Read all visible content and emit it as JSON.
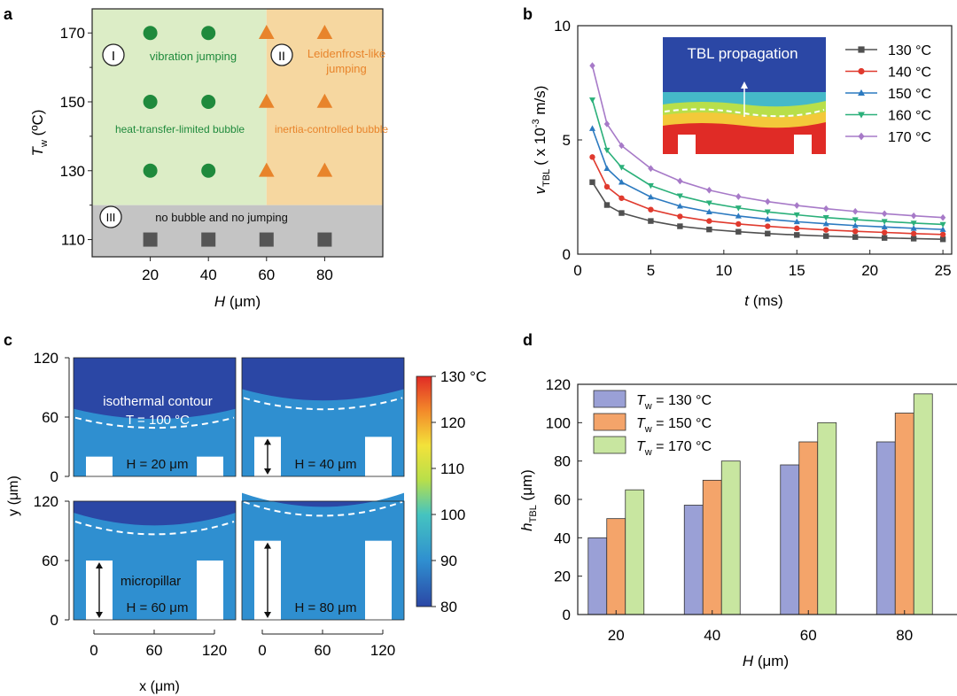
{
  "panels": {
    "a": "a",
    "b": "b",
    "c": "c",
    "d": "d"
  },
  "chart_data": [
    {
      "panel": "a",
      "type": "scatter",
      "xlabel": "H (μm)",
      "xlabel_italic": "H",
      "xlabel_unit": " (μm)",
      "ylabel_italic": "T",
      "ylabel_sub": "w",
      "ylabel_unit": " (ºC)",
      "x_ticks": [
        "20",
        "40",
        "60",
        "80"
      ],
      "y_ticks": [
        "110",
        "130",
        "150",
        "170"
      ],
      "xlim": [
        0,
        100
      ],
      "ylim": [
        105,
        177
      ],
      "regions": [
        {
          "name": "region-I",
          "numeral": "I",
          "color": "#dcedc6",
          "x_range": [
            0,
            60
          ],
          "y_range": [
            120,
            177
          ]
        },
        {
          "name": "region-II",
          "numeral": "II",
          "color": "#f6d7a0",
          "x_range": [
            60,
            100
          ],
          "y_range": [
            120,
            177
          ]
        },
        {
          "name": "region-III",
          "numeral": "III",
          "color": "#c4c4c4",
          "x_range": [
            0,
            100
          ],
          "y_range": [
            105,
            120
          ]
        }
      ],
      "labels": {
        "vibration": "vibration jumping",
        "leidenfrost_1": "Leidenfrost-like",
        "leidenfrost_2": "jumping",
        "heat_limited": "heat-transfer-limited bubble",
        "inertia": "inertia-controlled bubble",
        "no_bubble": "no bubble and no jumping"
      },
      "series": [
        {
          "name": "vibration jumping",
          "marker": "circle",
          "color": "#1f8a3c",
          "points": [
            [
              20,
              130
            ],
            [
              40,
              130
            ],
            [
              20,
              150
            ],
            [
              40,
              150
            ],
            [
              20,
              170
            ],
            [
              40,
              170
            ]
          ]
        },
        {
          "name": "Leidenfrost-like jumping",
          "marker": "triangle",
          "color": "#e8842b",
          "points": [
            [
              60,
              130
            ],
            [
              80,
              130
            ],
            [
              60,
              150
            ],
            [
              80,
              150
            ],
            [
              60,
              170
            ],
            [
              80,
              170
            ]
          ]
        },
        {
          "name": "no bubble and no jumping",
          "marker": "square",
          "color": "#555555",
          "points": [
            [
              20,
              110
            ],
            [
              40,
              110
            ],
            [
              60,
              110
            ],
            [
              80,
              110
            ]
          ]
        }
      ]
    },
    {
      "panel": "b",
      "type": "line",
      "xlabel_italic": "t",
      "xlabel_unit": " (ms)",
      "ylabel_italic": "v",
      "ylabel_sub": "TBL",
      "ylabel_unit": "( x 10",
      "ylabel_sup": "-3",
      "ylabel_unit2": " m/s)",
      "x_ticks": [
        "0",
        "5",
        "10",
        "15",
        "20",
        "25"
      ],
      "y_ticks": [
        "0",
        "5",
        "10"
      ],
      "xlim": [
        0,
        25.6
      ],
      "ylim": [
        0,
        10
      ],
      "inset_title": "TBL propagation",
      "x": [
        1,
        2,
        3,
        5,
        7,
        9,
        11,
        13,
        15,
        17,
        19,
        21,
        23,
        25
      ],
      "series": [
        {
          "name": "130 °C",
          "marker": "square",
          "color": "#505050",
          "values": [
            3.15,
            2.15,
            1.8,
            1.45,
            1.22,
            1.08,
            0.98,
            0.9,
            0.84,
            0.79,
            0.75,
            0.71,
            0.68,
            0.65
          ]
        },
        {
          "name": "140 °C",
          "marker": "circle",
          "color": "#e03a2e",
          "values": [
            4.25,
            2.95,
            2.45,
            1.95,
            1.65,
            1.45,
            1.32,
            1.22,
            1.13,
            1.06,
            1.0,
            0.95,
            0.9,
            0.86
          ]
        },
        {
          "name": "150 °C",
          "marker": "triangle",
          "color": "#2c7ac0",
          "values": [
            5.5,
            3.75,
            3.15,
            2.5,
            2.1,
            1.85,
            1.67,
            1.53,
            1.42,
            1.33,
            1.25,
            1.19,
            1.13,
            1.08
          ]
        },
        {
          "name": "160 °C",
          "marker": "triangle-down",
          "color": "#2bb07a",
          "values": [
            6.75,
            4.55,
            3.8,
            3.0,
            2.55,
            2.24,
            2.02,
            1.85,
            1.72,
            1.6,
            1.51,
            1.43,
            1.36,
            1.3
          ]
        },
        {
          "name": "170 °C",
          "marker": "diamond",
          "color": "#a77ac8",
          "values": [
            8.25,
            5.7,
            4.75,
            3.75,
            3.2,
            2.8,
            2.52,
            2.3,
            2.13,
            1.99,
            1.87,
            1.77,
            1.68,
            1.6
          ]
        }
      ]
    },
    {
      "panel": "c",
      "type": "heatmap",
      "xlabel": "x (μm)",
      "ylabel": "y (μm)",
      "x_ticks": [
        "0",
        "60",
        "120"
      ],
      "y_ticks": [
        "0",
        "60",
        "120"
      ],
      "colorbar_ticks": [
        "130 °C",
        "120",
        "110",
        "100",
        "90",
        "80"
      ],
      "colorbar_range": [
        80,
        130
      ],
      "isotherm_line1": "isothermal contour",
      "isotherm_line2": "T = 100 °C",
      "micropillar_label": "micropillar",
      "subplots": [
        {
          "name": "H-20",
          "label": "H = 20 μm",
          "H": 20
        },
        {
          "name": "H-40",
          "label": "H = 40 μm",
          "H": 40
        },
        {
          "name": "H-60",
          "label": "H = 60 μm",
          "H": 60
        },
        {
          "name": "H-80",
          "label": "H = 80 μm",
          "H": 80
        }
      ]
    },
    {
      "panel": "d",
      "type": "bar",
      "xlabel_italic": "H",
      "xlabel_unit": " (μm)",
      "ylabel_italic": "h",
      "ylabel_sub": "TBL",
      "ylabel_unit": " (μm)",
      "categories": [
        "20",
        "40",
        "60",
        "80"
      ],
      "y_ticks": [
        "0",
        "20",
        "40",
        "60",
        "80",
        "100",
        "120"
      ],
      "ylim": [
        0,
        120
      ],
      "legend_prefix": "T",
      "legend_sub": "w",
      "series": [
        {
          "name": "T_w = 130 °C",
          "legend_suffix": " = 130 °C",
          "color": "#9aa0d6",
          "values": [
            40,
            57,
            78,
            90
          ]
        },
        {
          "name": "T_w = 150 °C",
          "legend_suffix": " = 150 °C",
          "color": "#f4a46a",
          "values": [
            50,
            70,
            90,
            105
          ]
        },
        {
          "name": "T_w = 170 °C",
          "legend_suffix": " = 170 °C",
          "color": "#c8e6a0",
          "values": [
            65,
            80,
            100,
            115
          ]
        }
      ]
    }
  ]
}
